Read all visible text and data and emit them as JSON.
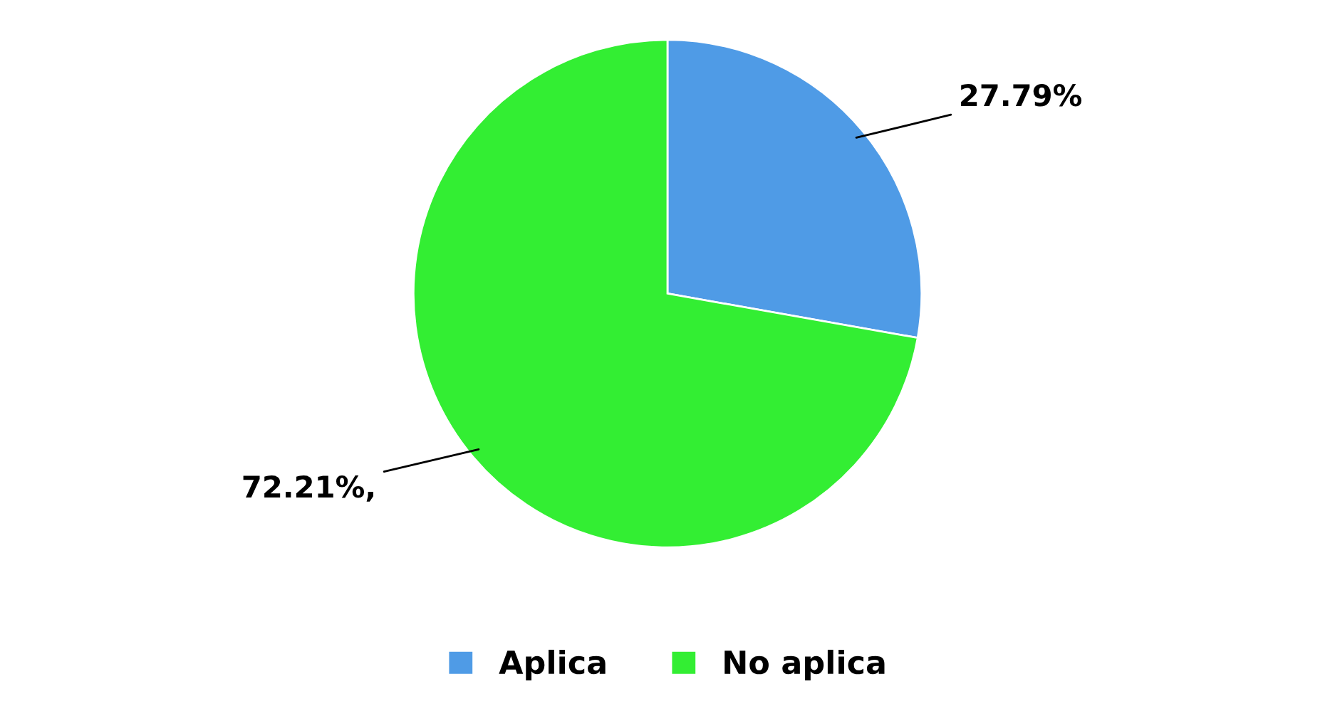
{
  "chart_data": {
    "type": "pie",
    "categories": [
      "Aplica",
      "No aplica"
    ],
    "values": [
      27.79,
      72.21
    ],
    "colors": [
      "#4f9be6",
      "#33ee33"
    ],
    "value_labels": [
      "27.79%",
      "72.21%,"
    ],
    "legend": "bottom"
  }
}
